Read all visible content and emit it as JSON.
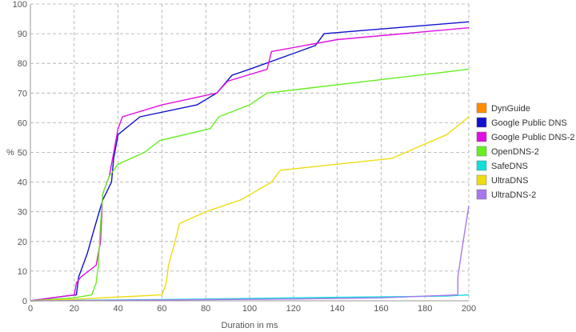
{
  "chart_data": {
    "type": "line",
    "title": "",
    "xlabel": "Duration in ms",
    "ylabel": "%",
    "xlim": [
      0,
      200
    ],
    "ylim": [
      0,
      100
    ],
    "xticks": [
      0,
      20,
      40,
      60,
      80,
      100,
      120,
      140,
      160,
      180,
      200
    ],
    "yticks": [
      0,
      10,
      20,
      30,
      40,
      50,
      60,
      70,
      80,
      90,
      100
    ],
    "grid": true,
    "grid_style": "dashed",
    "legend_position": "right",
    "series": [
      {
        "name": "DynGuide",
        "color": "#ff8c00",
        "points": []
      },
      {
        "name": "Google Public DNS",
        "color": "#1010d0",
        "points": [
          [
            0,
            0
          ],
          [
            15,
            1.5
          ],
          [
            21,
            2
          ],
          [
            22,
            8
          ],
          [
            26,
            16
          ],
          [
            29,
            24
          ],
          [
            33,
            34
          ],
          [
            37,
            40
          ],
          [
            38,
            48
          ],
          [
            40,
            56
          ],
          [
            50,
            62
          ],
          [
            76,
            66
          ],
          [
            85,
            70
          ],
          [
            92,
            76
          ],
          [
            100,
            78
          ],
          [
            130,
            86
          ],
          [
            134,
            90
          ],
          [
            200,
            94
          ]
        ]
      },
      {
        "name": "Google Public DNS-2",
        "color": "#e010e0",
        "points": [
          [
            0,
            0
          ],
          [
            20,
            2
          ],
          [
            21,
            6
          ],
          [
            23,
            8
          ],
          [
            30,
            12
          ],
          [
            32,
            20
          ],
          [
            33,
            36
          ],
          [
            36,
            42
          ],
          [
            38,
            50
          ],
          [
            40,
            58
          ],
          [
            42,
            62
          ],
          [
            60,
            66
          ],
          [
            85,
            70
          ],
          [
            90,
            74
          ],
          [
            108,
            78
          ],
          [
            110,
            84
          ],
          [
            140,
            88
          ],
          [
            200,
            92
          ]
        ]
      },
      {
        "name": "OpenDNS-2",
        "color": "#66ee22",
        "points": [
          [
            0,
            0
          ],
          [
            20,
            1
          ],
          [
            28,
            2
          ],
          [
            30,
            6
          ],
          [
            31,
            12
          ],
          [
            32,
            26
          ],
          [
            33,
            36
          ],
          [
            36,
            42
          ],
          [
            40,
            46
          ],
          [
            52,
            50
          ],
          [
            59,
            54
          ],
          [
            82,
            58
          ],
          [
            86,
            62
          ],
          [
            100,
            66
          ],
          [
            108,
            70
          ],
          [
            200,
            78
          ]
        ]
      },
      {
        "name": "SafeDNS",
        "color": "#11dddd",
        "points": [
          [
            0,
            0
          ],
          [
            20,
            0.2
          ],
          [
            60,
            0.4
          ],
          [
            120,
            1
          ],
          [
            190,
            1.6
          ],
          [
            200,
            2
          ]
        ]
      },
      {
        "name": "UltraDNS",
        "color": "#eedd11",
        "points": [
          [
            0,
            0
          ],
          [
            20,
            0.5
          ],
          [
            60,
            2
          ],
          [
            62,
            6
          ],
          [
            63,
            12
          ],
          [
            66,
            20
          ],
          [
            68,
            26
          ],
          [
            80,
            30
          ],
          [
            96,
            34
          ],
          [
            110,
            40
          ],
          [
            114,
            44
          ],
          [
            165,
            48
          ],
          [
            190,
            56
          ],
          [
            200,
            62
          ]
        ]
      },
      {
        "name": "UltraDNS-2",
        "color": "#aa77ee",
        "points": [
          [
            0,
            0
          ],
          [
            60,
            0.3
          ],
          [
            120,
            0.6
          ],
          [
            160,
            1
          ],
          [
            195,
            2
          ],
          [
            195,
            8
          ],
          [
            197,
            18
          ],
          [
            200,
            32
          ]
        ]
      }
    ]
  }
}
